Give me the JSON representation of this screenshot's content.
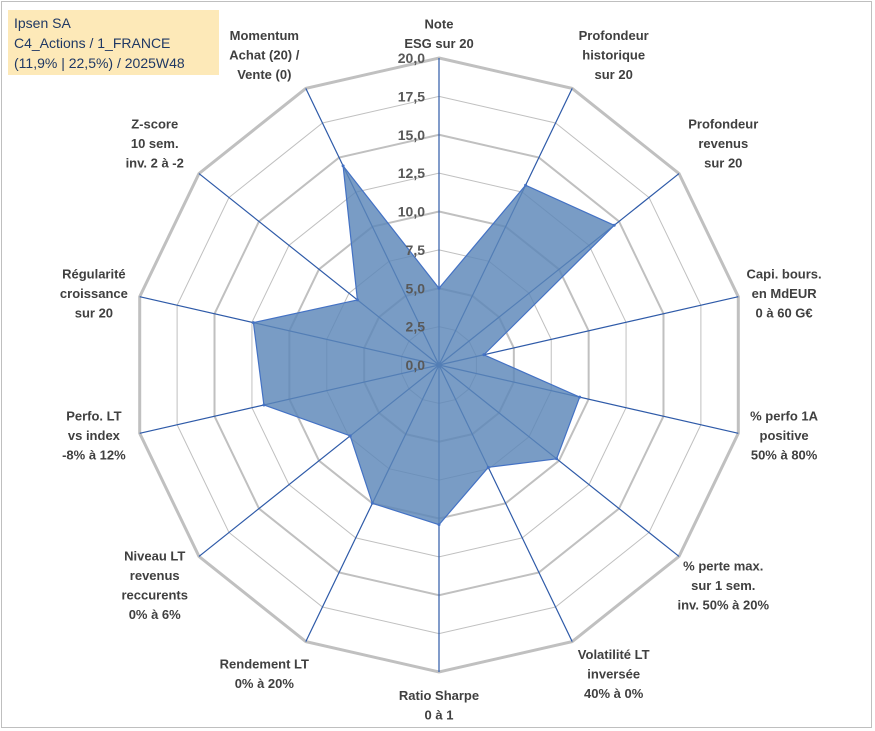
{
  "title": {
    "line1": "Ipsen SA",
    "line2": "C4_Actions / 1_FRANCE",
    "line3": "(11,9% | 22,5%) / 2025W48"
  },
  "colors": {
    "fill": "#5b86b8",
    "stroke": "#4472c4",
    "ring": "#c0c0c0",
    "spoke": "#2e5aa8",
    "title_bg": "#fde9b8",
    "title_text": "#1f3864",
    "label_text": "#404040"
  },
  "chart_data": {
    "type": "radar",
    "title": "Ipsen SA",
    "rmin": 0,
    "rmax": 20,
    "ticks": [
      "0,0",
      "2,5",
      "5,0",
      "7,5",
      "10,0",
      "12,5",
      "15,0",
      "17,5",
      "20,0"
    ],
    "tick_values": [
      0,
      2.5,
      5,
      7.5,
      10,
      12.5,
      15,
      17.5,
      20
    ],
    "axes": [
      {
        "label": [
          "Note",
          "ESG sur 20"
        ],
        "value": 5.0
      },
      {
        "label": [
          "Profondeur",
          "historique",
          "sur 20"
        ],
        "value": 13.0
      },
      {
        "label": [
          "Profondeur",
          "revenus",
          "sur 20"
        ],
        "value": 14.6
      },
      {
        "label": [
          "Capi. bours.",
          "en MdEUR",
          "0 à 60 G€"
        ],
        "value": 3.0
      },
      {
        "label": [
          "% perfo 1A",
          "positive",
          "50% à 80%"
        ],
        "value": 9.4
      },
      {
        "label": [
          "% perte max.",
          "sur 1 sem.",
          "inv. 50% à 20%"
        ],
        "value": 9.8
      },
      {
        "label": [
          "Volatilité LT",
          "inversée",
          "40% à 0%"
        ],
        "value": 7.4
      },
      {
        "label": [
          "Ratio Sharpe",
          "0 à 1"
        ],
        "value": 10.4
      },
      {
        "label": [
          "Rendement LT",
          "0% à 20%"
        ],
        "value": 10.0
      },
      {
        "label": [
          "Niveau LT",
          "revenus",
          "reccurents",
          "0% à 6%"
        ],
        "value": 7.4
      },
      {
        "label": [
          "Perfo. LT",
          "vs index",
          "-8% à 12%"
        ],
        "value": 11.7
      },
      {
        "label": [
          "Régularité",
          "croissance",
          "sur 20"
        ],
        "value": 12.4
      },
      {
        "label": [
          "Z-score",
          "10 sem.",
          "inv. 2 à -2"
        ],
        "value": 6.8
      },
      {
        "label": [
          "Momentum",
          "Achat (20) /",
          "Vente (0)"
        ],
        "value": 14.4
      }
    ],
    "legend": "none",
    "grid": true
  }
}
